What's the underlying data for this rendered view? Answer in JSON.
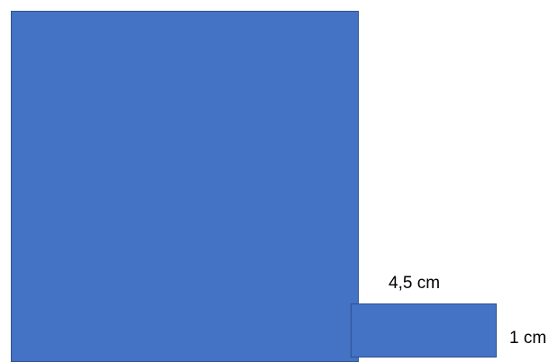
{
  "shapes": {
    "fill_color": "#4472c4",
    "border_color": "#2f528f"
  },
  "labels": {
    "small_rect_width": "4,5 cm",
    "small_rect_height": "1 cm"
  }
}
